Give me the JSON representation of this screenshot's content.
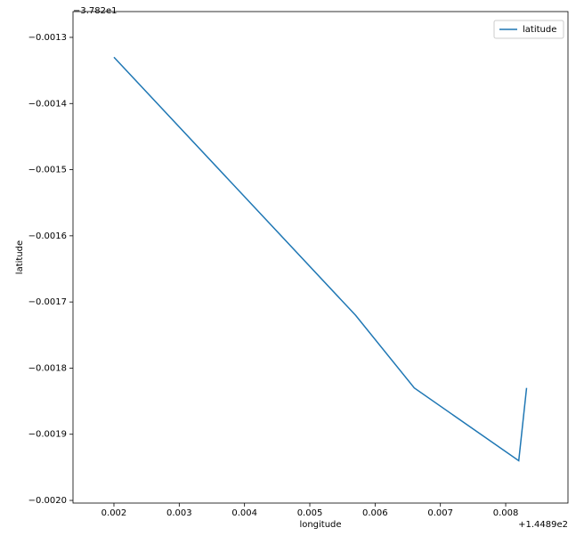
{
  "chart_data": {
    "type": "line",
    "x_label": "longitude",
    "y_label": "latitude",
    "x_offset_label": "+1.4489e2",
    "y_offset_label": "−3.782e1",
    "x": [
      0.002,
      0.0057,
      0.0066,
      0.0082,
      0.00832
    ],
    "series": [
      {
        "name": "latitude",
        "color": "#1f77b4",
        "values": [
          -0.00133,
          -0.00172,
          -0.00183,
          -0.00194,
          -0.00183
        ]
      }
    ],
    "xlim": [
      0.001373,
      0.008954
    ],
    "ylim": [
      -0.002004,
      -0.001261
    ],
    "xticks": [
      0.002,
      0.003,
      0.004,
      0.005,
      0.006,
      0.007,
      0.008
    ],
    "yticks": [
      {
        "value": -0.0013,
        "label": "−0.0013"
      },
      {
        "value": -0.0014,
        "label": "−0.0014"
      },
      {
        "value": -0.0015,
        "label": "−0.0015"
      },
      {
        "value": -0.0016,
        "label": "−0.0016"
      },
      {
        "value": -0.0017,
        "label": "−0.0017"
      },
      {
        "value": -0.0018,
        "label": "−0.0018"
      },
      {
        "value": -0.0019,
        "label": "−0.0019"
      },
      {
        "value": -0.002,
        "label": "−0.0020"
      }
    ],
    "grid": false,
    "legend": "upper right"
  }
}
